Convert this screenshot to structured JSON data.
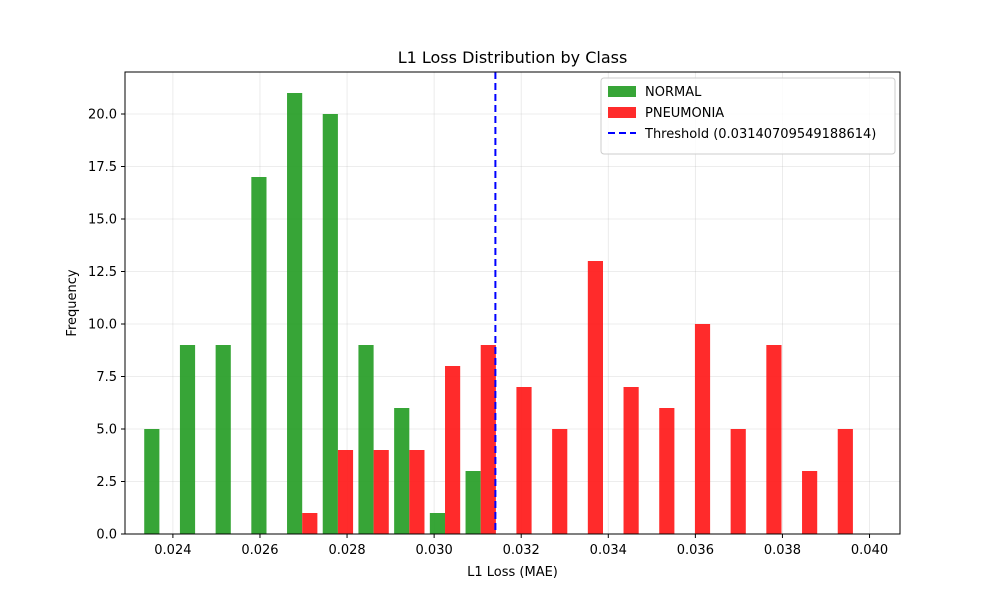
{
  "chart_data": {
    "type": "bar",
    "title": "L1 Loss Distribution by Class",
    "xlabel": "L1 Loss (MAE)",
    "ylabel": "Frequency",
    "xlim": [
      0.0229,
      0.0407
    ],
    "ylim": [
      0,
      22
    ],
    "grid": true,
    "legend_position": "top-right",
    "x_ticks": [
      "0.024",
      "0.026",
      "0.028",
      "0.030",
      "0.032",
      "0.034",
      "0.036",
      "0.038",
      "0.040"
    ],
    "x_tick_values": [
      0.024,
      0.026,
      0.028,
      0.03,
      0.032,
      0.034,
      0.036,
      0.038,
      0.04
    ],
    "y_ticks": [
      "0.0",
      "2.5",
      "5.0",
      "7.5",
      "10.0",
      "12.5",
      "15.0",
      "17.5",
      "20.0"
    ],
    "y_tick_values": [
      0,
      2.5,
      5,
      7.5,
      10,
      12.5,
      15,
      17.5,
      20
    ],
    "bin_centers": [
      0.02369,
      0.02451,
      0.02533,
      0.02615,
      0.02697,
      0.02779,
      0.02861,
      0.02943,
      0.03025,
      0.03107,
      0.03189,
      0.03271,
      0.03353,
      0.03435,
      0.03517,
      0.03599,
      0.03681,
      0.03763,
      0.03845,
      0.03927
    ],
    "bin_width": 0.00082,
    "series": [
      {
        "name": "NORMAL",
        "color": "#2ca02c",
        "values": [
          5,
          9,
          9,
          17,
          21,
          20,
          9,
          6,
          1,
          3,
          0,
          0,
          0,
          0,
          0,
          0,
          0,
          0,
          0,
          0
        ]
      },
      {
        "name": "PNEUMONIA",
        "color": "#ff2020",
        "values": [
          0,
          0,
          0,
          0,
          1,
          4,
          4,
          4,
          8,
          9,
          7,
          5,
          13,
          7,
          6,
          10,
          5,
          9,
          3,
          5
        ]
      }
    ],
    "threshold": {
      "label": "Threshold (0.03140709549188614)",
      "value": 0.03140709549188614,
      "color": "#0000ff"
    }
  }
}
